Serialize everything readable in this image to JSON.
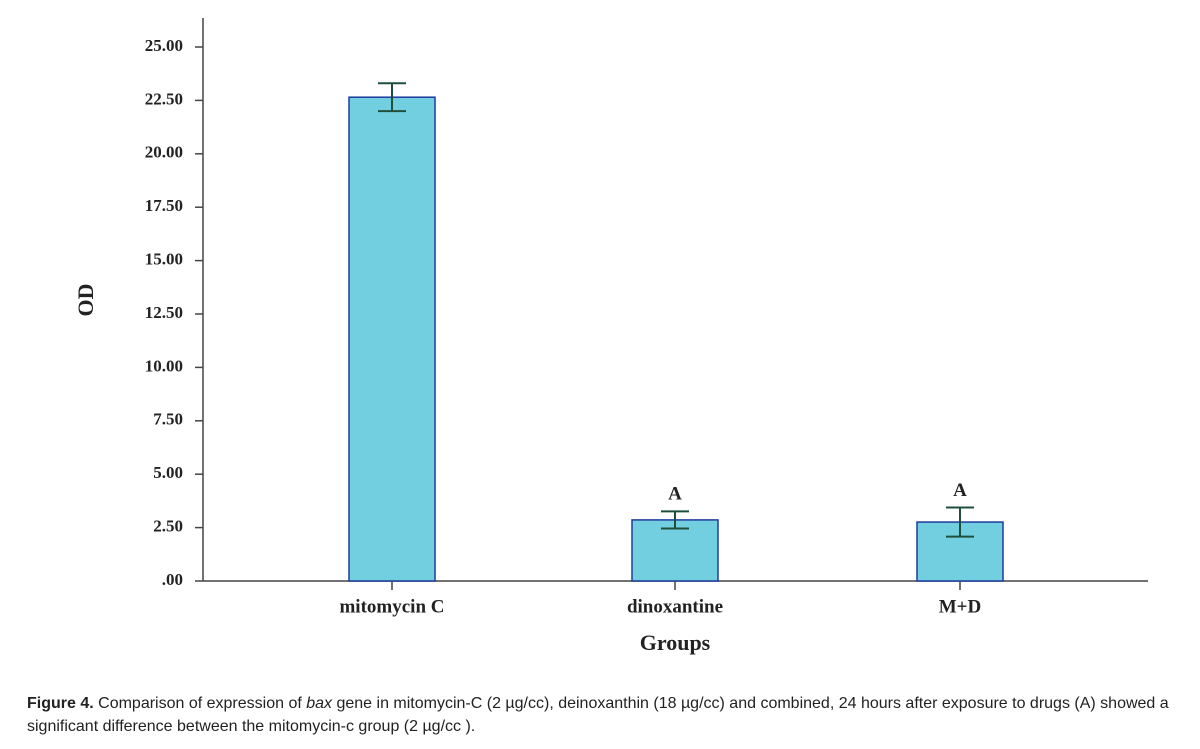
{
  "chart_data": {
    "type": "bar",
    "categories": [
      "mitomycin C",
      "dinoxantine",
      "M+D"
    ],
    "values": [
      22.65,
      2.86,
      2.76
    ],
    "errors": [
      0.65,
      0.4,
      0.68
    ],
    "value_annotations": [
      null,
      "A",
      "A"
    ],
    "color": "#72cfe0",
    "edge_color": "#1d3b9e",
    "error_color": "#1f4f3c",
    "ylabel": "OD",
    "xlabel": "Groups",
    "ylim": [
      0,
      25
    ],
    "yticks": [
      {
        "value": 0,
        "label": ".00"
      },
      {
        "value": 2.5,
        "label": "2.50"
      },
      {
        "value": 5,
        "label": "5.00"
      },
      {
        "value": 7.5,
        "label": "7.50"
      },
      {
        "value": 10,
        "label": "10.00"
      },
      {
        "value": 12.5,
        "label": "12.50"
      },
      {
        "value": 15,
        "label": "15.00"
      },
      {
        "value": 17.5,
        "label": "17.50"
      },
      {
        "value": 20,
        "label": "20.00"
      },
      {
        "value": 22.5,
        "label": "22.50"
      },
      {
        "value": 25,
        "label": "25.00"
      }
    ],
    "grid": false
  },
  "caption": {
    "label": "Figure 4.",
    "parts": [
      " Comparison of expression of ",
      "bax",
      " gene in mitomycin-C (2 µg/cc), deinoxanthin (18 µg/cc) and combined, 24 hours after exposure to drugs (A) showed a significant difference between the mitomycin-c group (2 µg/cc )."
    ]
  }
}
